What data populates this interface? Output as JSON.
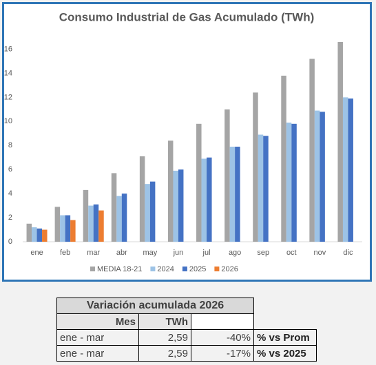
{
  "chart_data": {
    "type": "bar",
    "title": "Consumo Industrial de Gas Acumulado (TWh)",
    "categories": [
      "ene",
      "feb",
      "mar",
      "abr",
      "may",
      "jun",
      "jul",
      "ago",
      "sep",
      "oct",
      "nov",
      "dic"
    ],
    "series": [
      {
        "name": "MEDIA 18-21",
        "color": "#a5a5a5",
        "values": [
          1.5,
          2.9,
          4.3,
          5.7,
          7.1,
          8.4,
          9.8,
          11.0,
          12.4,
          13.8,
          15.2,
          16.6
        ]
      },
      {
        "name": "2024",
        "color": "#9dc3e6",
        "values": [
          1.2,
          2.2,
          3.0,
          3.8,
          4.8,
          5.9,
          6.9,
          7.9,
          8.9,
          9.9,
          10.9,
          12.0
        ]
      },
      {
        "name": "2025",
        "color": "#4472c4",
        "values": [
          1.1,
          2.2,
          3.1,
          4.0,
          5.0,
          6.0,
          7.0,
          7.9,
          8.8,
          9.8,
          10.8,
          11.9
        ]
      },
      {
        "name": "2026",
        "color": "#ed7d31",
        "values": [
          1.0,
          1.8,
          2.6,
          null,
          null,
          null,
          null,
          null,
          null,
          null,
          null,
          null
        ]
      }
    ],
    "ylim": [
      0,
      17
    ],
    "yticks": [
      0,
      2,
      4,
      6,
      8,
      10,
      12,
      14,
      16
    ],
    "grid": false,
    "legend": "bottom"
  },
  "table": {
    "title": "Variación acumulada 2026",
    "header": [
      "Mes",
      "TWh"
    ],
    "rows": [
      [
        "ene - mar",
        "2,59",
        "-40%",
        "% vs Prom"
      ],
      [
        "ene - mar",
        "2,59",
        "-17%",
        "% vs 2025"
      ]
    ]
  }
}
